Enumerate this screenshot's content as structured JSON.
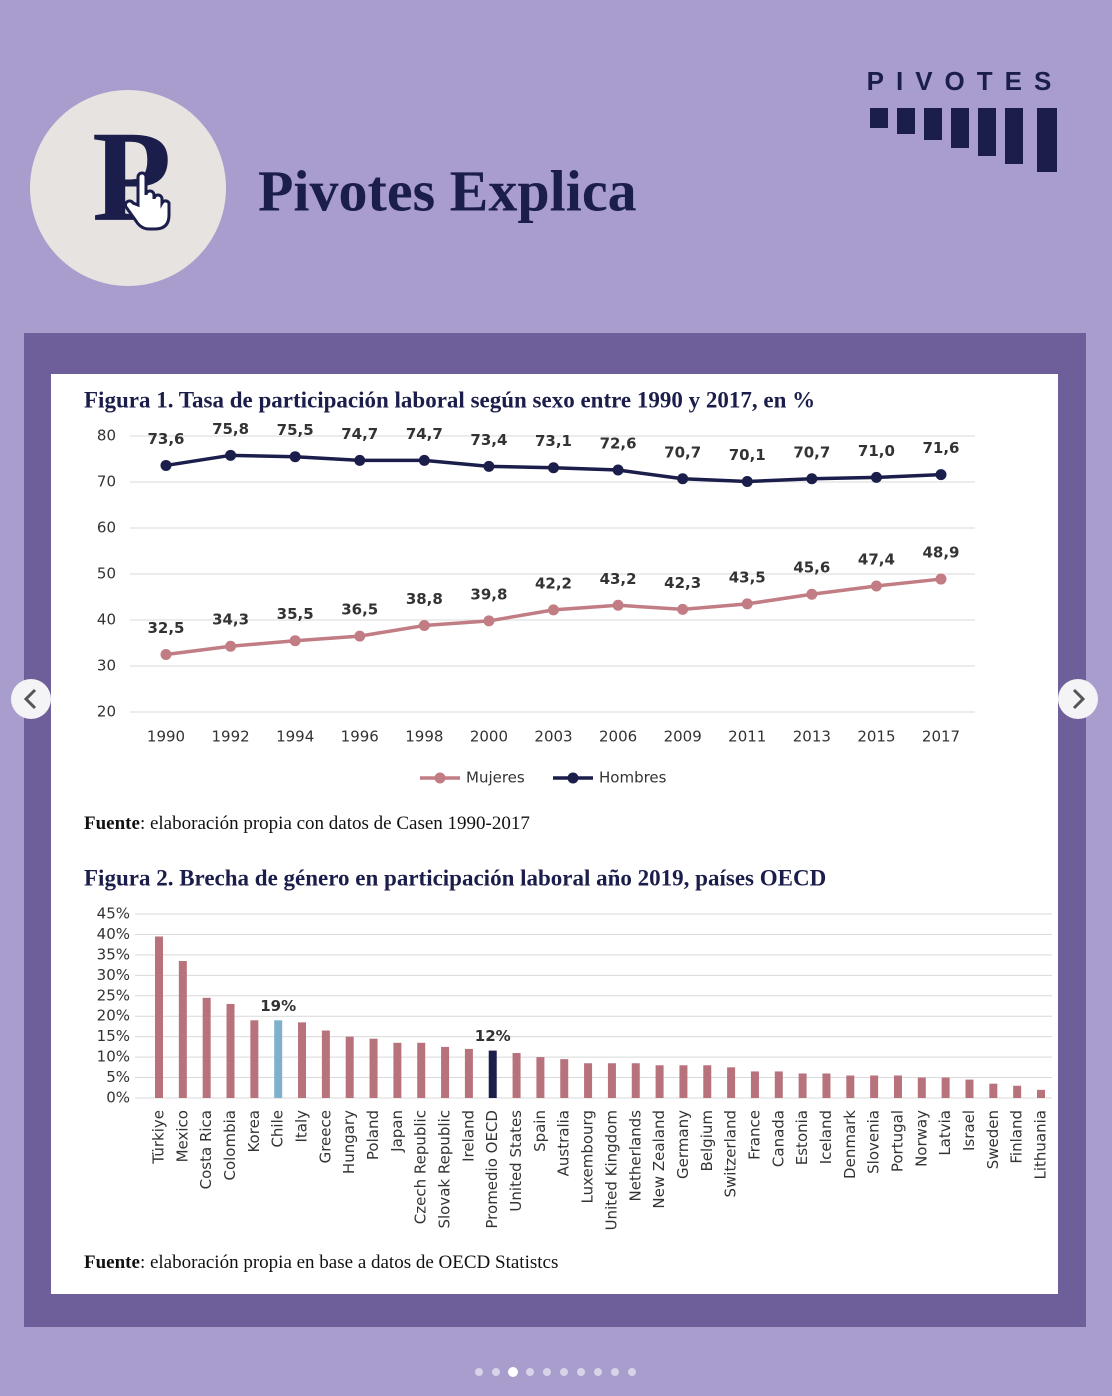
{
  "header": {
    "brand": "PIVOTES",
    "logo_letter": "P",
    "title": "Pivotes Explica"
  },
  "chart_data": [
    {
      "type": "line",
      "title": "Figura 1. Tasa de participación laboral según sexo entre 1990 y 2017, en %",
      "categories": [
        "1990",
        "1992",
        "1994",
        "1996",
        "1998",
        "2000",
        "2003",
        "2006",
        "2009",
        "2011",
        "2013",
        "2015",
        "2017"
      ],
      "series": [
        {
          "name": "Mujeres",
          "color": "#c27c84",
          "values": [
            32.5,
            34.3,
            35.5,
            36.5,
            38.8,
            39.8,
            42.2,
            43.2,
            42.3,
            43.5,
            45.6,
            47.4,
            48.9
          ],
          "value_labels": [
            "32,5",
            "34,3",
            "35,5",
            "36,5",
            "38,8",
            "39,8",
            "42,2",
            "43,2",
            "42,3",
            "43,5",
            "45,6",
            "47,4",
            "48,9"
          ]
        },
        {
          "name": "Hombres",
          "color": "#1b1e4b",
          "values": [
            73.6,
            75.8,
            75.5,
            74.7,
            74.7,
            73.4,
            73.1,
            72.6,
            70.7,
            70.1,
            70.7,
            71.0,
            71.6
          ],
          "value_labels": [
            "73,6",
            "75,8",
            "75,5",
            "74,7",
            "74,7",
            "73,4",
            "73,1",
            "72,6",
            "70,7",
            "70,1",
            "70,7",
            "71,0",
            "71,6"
          ]
        }
      ],
      "ylim": [
        20,
        80
      ],
      "yticks": [
        20,
        30,
        40,
        50,
        60,
        70,
        80
      ],
      "grid": true,
      "legend": "bottom",
      "source_label": "Fuente",
      "source": ": elaboración propia con datos de Casen 1990-2017"
    },
    {
      "type": "bar",
      "title": "Figura 2. Brecha de género en participación laboral año 2019, países OECD",
      "categories": [
        "Türkiye",
        "Mexico",
        "Costa Rica",
        "Colombia",
        "Korea",
        "Chile",
        "Italy",
        "Greece",
        "Hungary",
        "Poland",
        "Japan",
        "Czech Republic",
        "Slovak Republic",
        "Ireland",
        "Promedio OECD",
        "United States",
        "Spain",
        "Australia",
        "Luxembourg",
        "United Kingdom",
        "Netherlands",
        "New Zealand",
        "Germany",
        "Belgium",
        "Switzerland",
        "France",
        "Canada",
        "Estonia",
        "Iceland",
        "Denmark",
        "Slovenia",
        "Portugal",
        "Norway",
        "Latvia",
        "Israel",
        "Sweden",
        "Finland",
        "Lithuania"
      ],
      "values": [
        39.5,
        33.5,
        24.5,
        23,
        19,
        19,
        18.5,
        16.5,
        15,
        14.5,
        13.5,
        13.5,
        12.5,
        12,
        11.6,
        11,
        10,
        9.5,
        8.5,
        8.5,
        8.5,
        8,
        8,
        8,
        7.5,
        6.5,
        6.5,
        6,
        6,
        5.5,
        5.5,
        5.5,
        5,
        5,
        4.5,
        3.5,
        3,
        2
      ],
      "value_labels": [
        null,
        null,
        null,
        null,
        null,
        "19%",
        null,
        null,
        null,
        null,
        null,
        null,
        null,
        null,
        "12%",
        null,
        null,
        null,
        null,
        null,
        null,
        null,
        null,
        null,
        null,
        null,
        null,
        null,
        null,
        null,
        null,
        null,
        null,
        null,
        null,
        null,
        null,
        null
      ],
      "colors": [
        "#b8727c",
        "#b8727c",
        "#b8727c",
        "#b8727c",
        "#b8727c",
        "#7fb1cc",
        "#b8727c",
        "#b8727c",
        "#b8727c",
        "#b8727c",
        "#b8727c",
        "#b8727c",
        "#b8727c",
        "#b8727c",
        "#1b1e4b",
        "#b8727c",
        "#b8727c",
        "#b8727c",
        "#b8727c",
        "#b8727c",
        "#b8727c",
        "#b8727c",
        "#b8727c",
        "#b8727c",
        "#b8727c",
        "#b8727c",
        "#b8727c",
        "#b8727c",
        "#b8727c",
        "#b8727c",
        "#b8727c",
        "#b8727c",
        "#b8727c",
        "#b8727c",
        "#b8727c",
        "#b8727c",
        "#b8727c",
        "#b8727c"
      ],
      "label_colors": [
        null,
        null,
        null,
        null,
        null,
        "#3f7d97",
        null,
        null,
        null,
        null,
        null,
        null,
        null,
        null,
        "#1b1e4b",
        null,
        null,
        null,
        null,
        null,
        null,
        null,
        null,
        null,
        null,
        null,
        null,
        null,
        null,
        null,
        null,
        null,
        null,
        null,
        null,
        null,
        null,
        null
      ],
      "ylim": [
        0,
        45
      ],
      "yticks": [
        {
          "value": 0,
          "label": "0%"
        },
        {
          "value": 5,
          "label": "5%"
        },
        {
          "value": 10,
          "label": "10%"
        },
        {
          "value": 15,
          "label": "15%"
        },
        {
          "value": 20,
          "label": "20%"
        },
        {
          "value": 25,
          "label": "25%"
        },
        {
          "value": 30,
          "label": "30%"
        },
        {
          "value": 35,
          "label": "35%"
        },
        {
          "value": 40,
          "label": "40%"
        },
        {
          "value": 45,
          "label": "45%"
        }
      ],
      "grid": true,
      "source_label": "Fuente",
      "source": ": elaboración propia en base a datos de OECD Statistcs"
    }
  ]
}
